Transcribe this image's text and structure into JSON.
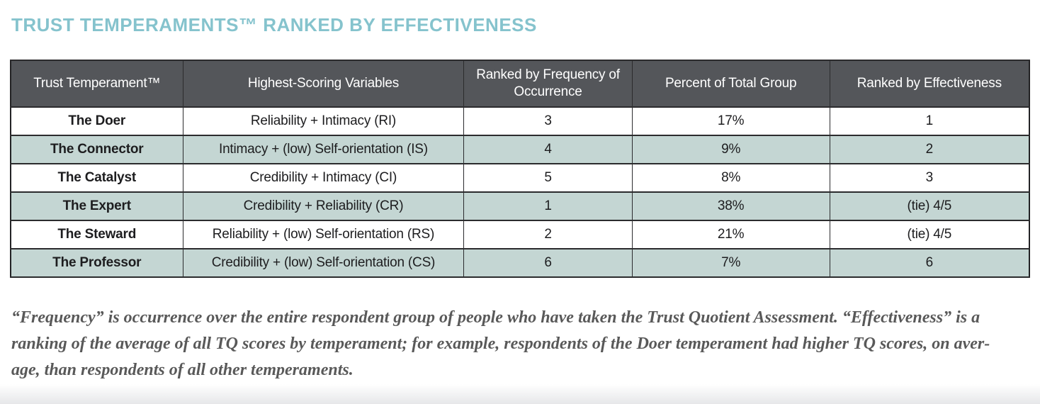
{
  "title": "TRUST TEMPERAMENTS™ RANKED BY EFFECTIVENESS",
  "colors": {
    "title_text": "#85c3cd",
    "header_bg": "#54565a",
    "header_text": "#ffffff",
    "row_bg": "#ffffff",
    "row_alt_bg": "#c4d6d3",
    "border": "#2b2b2d",
    "body_text": "#1d1d1f",
    "footnote_text": "#595959"
  },
  "chart_data": {
    "type": "table",
    "title": "TRUST TEMPERAMENTS™ RANKED BY EFFECTIVENESS",
    "columns": [
      "Trust Temperament™",
      "Highest-Scoring Variables",
      "Ranked by Frequency of Occurrence",
      "Percent of Total Group",
      "Ranked by Effectiveness"
    ],
    "rows": [
      [
        "The Doer",
        "Reliability + Intimacy (RI)",
        "3",
        "17%",
        "1"
      ],
      [
        "The Connector",
        "Intimacy + (low) Self-orientation (IS)",
        "4",
        "9%",
        "2"
      ],
      [
        "The Catalyst",
        "Credibility + Intimacy (CI)",
        "5",
        "8%",
        "3"
      ],
      [
        "The Expert",
        "Credibility + Reliability (CR)",
        "1",
        "38%",
        "(tie) 4/5"
      ],
      [
        "The Steward",
        "Reliability + (low) Self-orientation (RS)",
        "2",
        "21%",
        "(tie) 4/5"
      ],
      [
        "The Professor",
        "Credibility + (low) Self-orientation (CS)",
        "6",
        "7%",
        "6"
      ]
    ],
    "footnote": "“Frequency” is occurrence over the entire respondent group of people who have taken the Trust Quotient Assessment. “Effectiveness” is a ranking of the average of all TQ scores by temperament; for example, respondents of the Doer temperament had higher TQ scores, on average, than respondents of all other temperaments."
  },
  "footnote_lines": {
    "line1": "“Frequency” is occurrence over the entire respondent group of people who have taken the Trust Quotient Assessment. “Effectiveness” is a",
    "line2": "ranking of the average of all TQ scores by temperament; for example, respondents of the Doer temperament had higher TQ scores, on aver-",
    "line3": "age, than respondents of all other temperaments."
  }
}
